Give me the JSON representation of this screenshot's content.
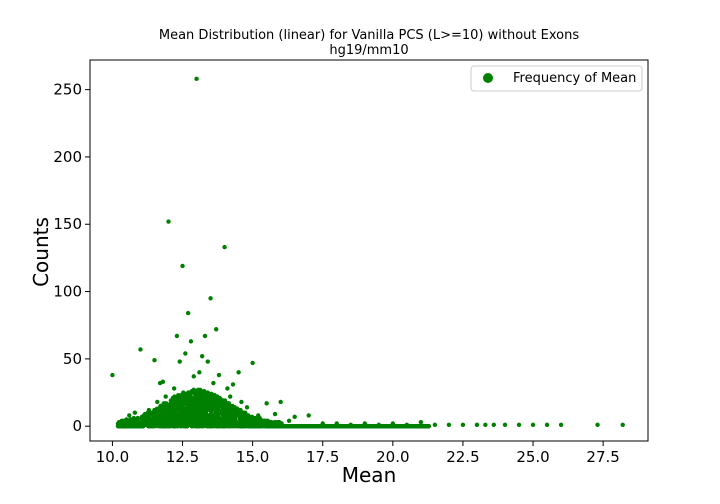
{
  "chart_data": {
    "type": "scatter",
    "title": "Mean Distribution (linear) for Vanilla PCS (L>=10) without Exons",
    "subtitle": "hg19/mm10",
    "xlabel": "Mean",
    "ylabel": "Counts",
    "xlim": [
      9.2,
      29.1
    ],
    "ylim": [
      -11,
      272
    ],
    "xticks": [
      "10.0",
      "12.5",
      "15.0",
      "17.5",
      "20.0",
      "22.5",
      "25.0",
      "27.5"
    ],
    "yticks": [
      "0",
      "50",
      "100",
      "150",
      "200",
      "250"
    ],
    "grid": false,
    "legend": {
      "position": "top-right",
      "entries": [
        "Frequency of Mean"
      ]
    },
    "colors": {
      "series": "#008000"
    },
    "series": [
      {
        "name": "Frequency of Mean",
        "points": [
          [
            10.0,
            38
          ],
          [
            10.2,
            1
          ],
          [
            10.4,
            1
          ],
          [
            10.5,
            5
          ],
          [
            10.6,
            8
          ],
          [
            10.7,
            2
          ],
          [
            10.8,
            10
          ],
          [
            10.9,
            6
          ],
          [
            11.0,
            57
          ],
          [
            11.1,
            3
          ],
          [
            11.2,
            9
          ],
          [
            11.3,
            12
          ],
          [
            11.5,
            49
          ],
          [
            11.6,
            18
          ],
          [
            11.7,
            32
          ],
          [
            11.8,
            33
          ],
          [
            11.9,
            22
          ],
          [
            12.0,
            152
          ],
          [
            12.1,
            16
          ],
          [
            12.2,
            28
          ],
          [
            12.3,
            67
          ],
          [
            12.4,
            48
          ],
          [
            12.5,
            119
          ],
          [
            12.6,
            54
          ],
          [
            12.7,
            84
          ],
          [
            12.8,
            63
          ],
          [
            12.9,
            37
          ],
          [
            13.0,
            258
          ],
          [
            13.1,
            40
          ],
          [
            13.2,
            52
          ],
          [
            13.3,
            67
          ],
          [
            13.4,
            48
          ],
          [
            13.5,
            95
          ],
          [
            13.6,
            32
          ],
          [
            13.7,
            72
          ],
          [
            13.8,
            38
          ],
          [
            14.0,
            133
          ],
          [
            14.1,
            28
          ],
          [
            14.2,
            22
          ],
          [
            14.3,
            31
          ],
          [
            14.5,
            40
          ],
          [
            14.6,
            18
          ],
          [
            14.8,
            14
          ],
          [
            15.0,
            47
          ],
          [
            15.2,
            8
          ],
          [
            15.5,
            17
          ],
          [
            15.8,
            9
          ],
          [
            16.0,
            18
          ],
          [
            16.3,
            4
          ],
          [
            16.5,
            7
          ],
          [
            17.0,
            8
          ],
          [
            17.5,
            2
          ],
          [
            18.0,
            2
          ],
          [
            18.5,
            1
          ],
          [
            19.0,
            2
          ],
          [
            19.5,
            1
          ],
          [
            20.0,
            2
          ],
          [
            20.5,
            1
          ],
          [
            21.0,
            3
          ],
          [
            21.5,
            1
          ],
          [
            22.0,
            1
          ],
          [
            22.5,
            1
          ],
          [
            23.0,
            1
          ],
          [
            23.3,
            1
          ],
          [
            23.6,
            1
          ],
          [
            24.0,
            1
          ],
          [
            24.5,
            1
          ],
          [
            25.0,
            1
          ],
          [
            25.5,
            1
          ],
          [
            26.0,
            1
          ],
          [
            27.3,
            1
          ],
          [
            28.2,
            1
          ]
        ],
        "dense_band": {
          "x_range": [
            10.2,
            21.3
          ],
          "typical_max_counts": 25
        }
      }
    ]
  }
}
